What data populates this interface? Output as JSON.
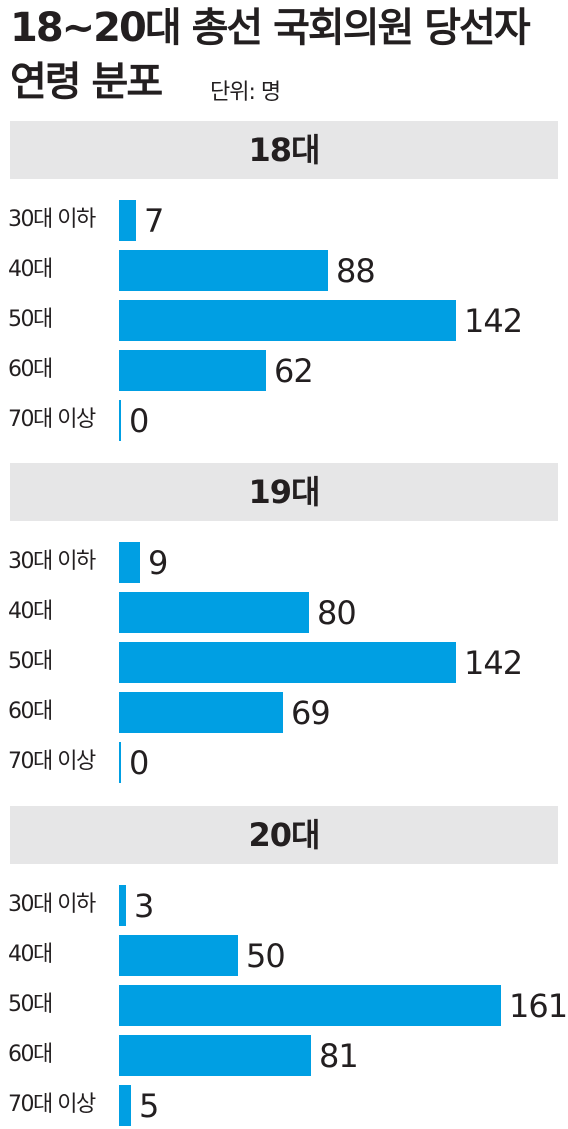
{
  "header": {
    "title_line1": "18~20대 총선 국회의원 당선자",
    "title_line2": "연령 분포",
    "unit": "단위: 명"
  },
  "chart_data": [
    {
      "type": "bar",
      "title": "18대",
      "orientation": "horizontal",
      "categories": [
        "30대 이하",
        "40대",
        "50대",
        "60대",
        "70대 이상"
      ],
      "values": [
        7,
        88,
        142,
        62,
        0
      ],
      "xlim": [
        0,
        161
      ],
      "bar_color": "#009fe3"
    },
    {
      "type": "bar",
      "title": "19대",
      "orientation": "horizontal",
      "categories": [
        "30대 이하",
        "40대",
        "50대",
        "60대",
        "70대 이상"
      ],
      "values": [
        9,
        80,
        142,
        69,
        0
      ],
      "xlim": [
        0,
        161
      ],
      "bar_color": "#009fe3"
    },
    {
      "type": "bar",
      "title": "20대",
      "orientation": "horizontal",
      "categories": [
        "30대 이하",
        "40대",
        "50대",
        "60대",
        "70대 이상"
      ],
      "values": [
        3,
        50,
        161,
        81,
        5
      ],
      "xlim": [
        0,
        161
      ],
      "bar_color": "#009fe3"
    }
  ]
}
